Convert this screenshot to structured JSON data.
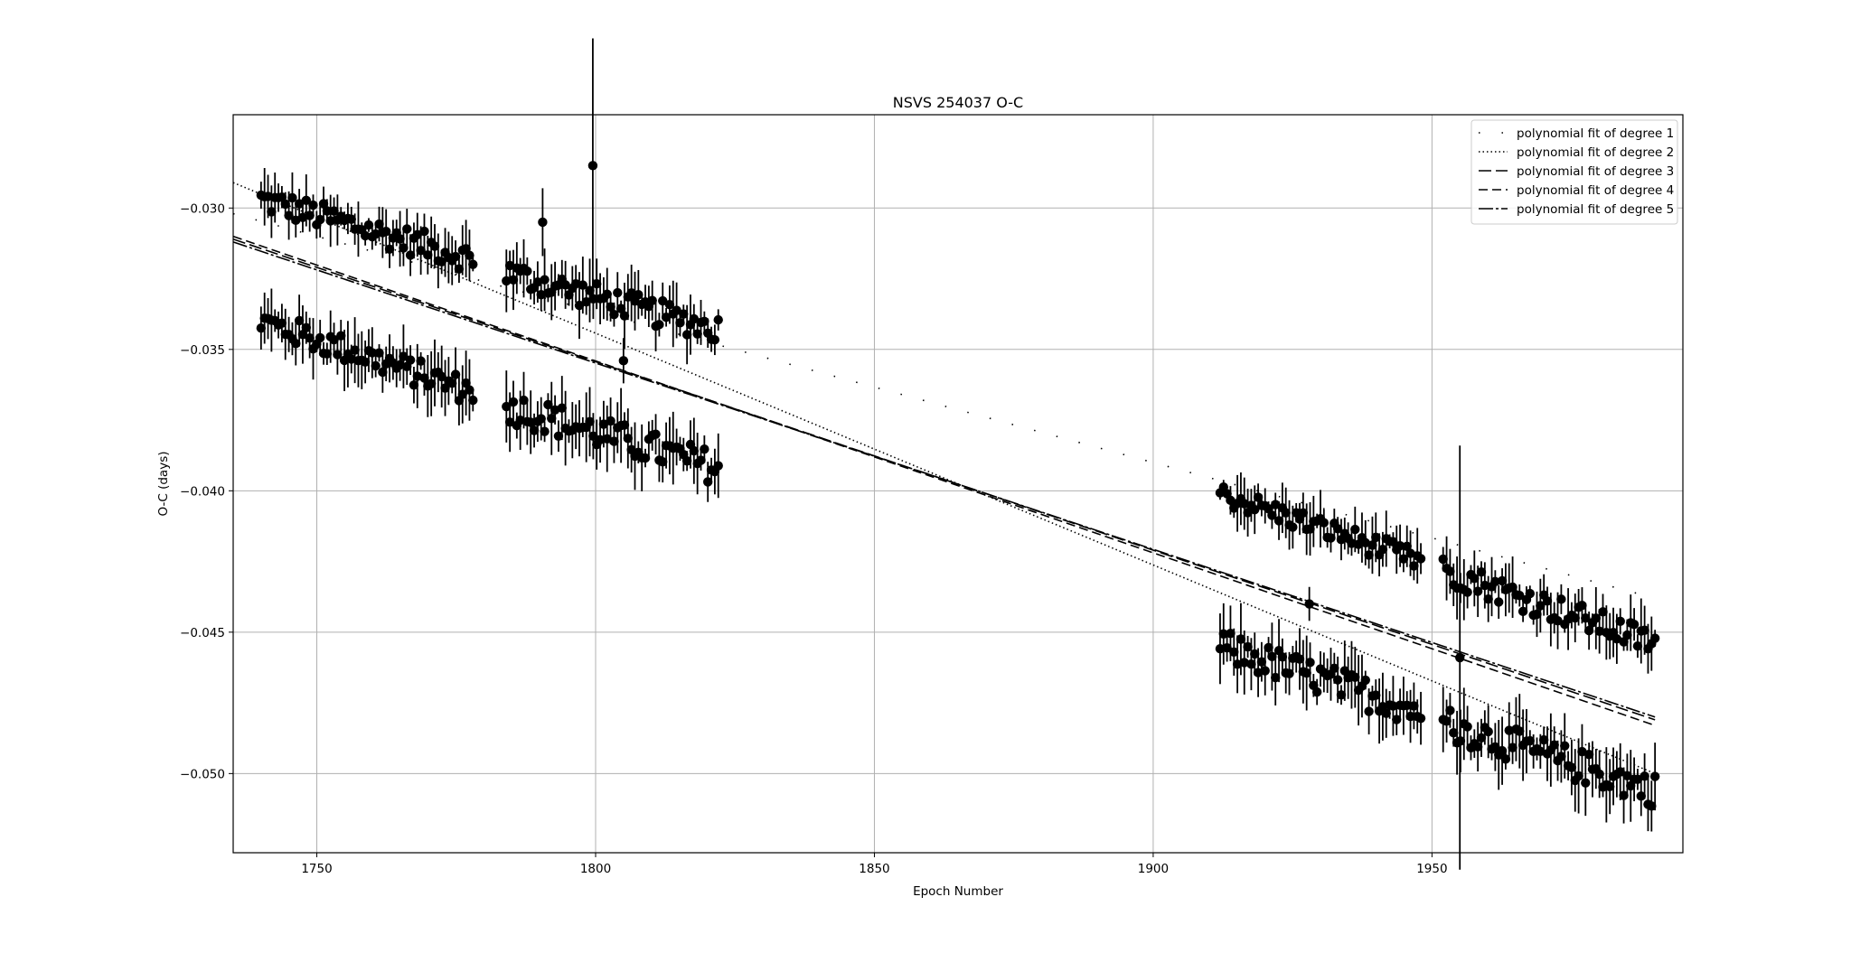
{
  "chart_data": {
    "type": "scatter",
    "title": "NSVS 254037 O-C",
    "xlabel": "Epoch Number",
    "ylabel": "O-C (days)",
    "xlim": [
      1735,
      1995
    ],
    "ylim": [
      -0.0528,
      -0.0267
    ],
    "xticks": [
      1750,
      1800,
      1850,
      1900,
      1950
    ],
    "xtick_labels": [
      "1750",
      "1800",
      "1850",
      "1900",
      "1950"
    ],
    "yticks": [
      -0.03,
      -0.035,
      -0.04,
      -0.045,
      -0.05
    ],
    "ytick_labels": [
      "−0.030",
      "−0.035",
      "−0.040",
      "−0.045",
      "−0.050"
    ],
    "grid": true,
    "legend_position": "top-right",
    "colors": {
      "points": "#000000",
      "fit_lines": "#000000",
      "grid": "#b0b0b0"
    },
    "series": [
      {
        "name": "data",
        "marker": "circle",
        "segments": [
          {
            "x_range": [
              1740,
              1778
            ],
            "y_start": -0.0297,
            "y_end": -0.0318,
            "err": 0.0006,
            "jitter": 0.0005
          },
          {
            "x_range": [
              1740,
              1778
            ],
            "y_start": -0.034,
            "y_end": -0.0365,
            "err": 0.0007,
            "jitter": 0.0005
          },
          {
            "x_range": [
              1784,
              1822
            ],
            "y_start": -0.0323,
            "y_end": -0.0343,
            "err": 0.0007,
            "jitter": 0.0005
          },
          {
            "x_range": [
              1784,
              1822
            ],
            "y_start": -0.037,
            "y_end": -0.0392,
            "err": 0.0008,
            "jitter": 0.0006
          },
          {
            "x_range": [
              1912,
              1948
            ],
            "y_start": -0.0401,
            "y_end": -0.0425,
            "err": 0.0006,
            "jitter": 0.0004
          },
          {
            "x_range": [
              1912,
              1948
            ],
            "y_start": -0.0455,
            "y_end": -0.0478,
            "err": 0.0008,
            "jitter": 0.0006
          },
          {
            "x_range": [
              1952,
              1990
            ],
            "y_start": -0.0428,
            "y_end": -0.0454,
            "err": 0.0007,
            "jitter": 0.0005
          },
          {
            "x_range": [
              1952,
              1990
            ],
            "y_start": -0.0482,
            "y_end": -0.0506,
            "err": 0.0008,
            "jitter": 0.0006
          }
        ],
        "outliers": [
          {
            "x": 1799.5,
            "y": -0.0285,
            "err": 0.0045
          },
          {
            "x": 1790.5,
            "y": -0.0305,
            "err": 0.0012
          },
          {
            "x": 1805,
            "y": -0.0354,
            "err": 0.0008
          },
          {
            "x": 1928,
            "y": -0.044,
            "err": 0.0006
          },
          {
            "x": 1955,
            "y": -0.0459,
            "err": 0.0075
          }
        ]
      }
    ],
    "fits": [
      {
        "name": "polynomial fit of degree 1",
        "dash": "1.5,24",
        "x": [
          1735,
          1990
        ],
        "y": [
          -0.0302,
          -0.0438
        ]
      },
      {
        "name": "polynomial fit of degree 2",
        "dash": "1.5,3",
        "x": [
          1735,
          1990
        ],
        "y": [
          -0.0291,
          -0.05
        ]
      },
      {
        "name": "polynomial fit of degree 3",
        "dash": "14,5",
        "x": [
          1735,
          1990
        ],
        "y": [
          -0.0311,
          -0.0481
        ]
      },
      {
        "name": "polynomial fit of degree 4",
        "dash": "10,5",
        "x": [
          1735,
          1990
        ],
        "y": [
          -0.031,
          -0.0483
        ]
      },
      {
        "name": "polynomial fit of degree 5",
        "dash": "16,3,3,3",
        "x": [
          1735,
          1990
        ],
        "y": [
          -0.0312,
          -0.048
        ]
      }
    ]
  }
}
